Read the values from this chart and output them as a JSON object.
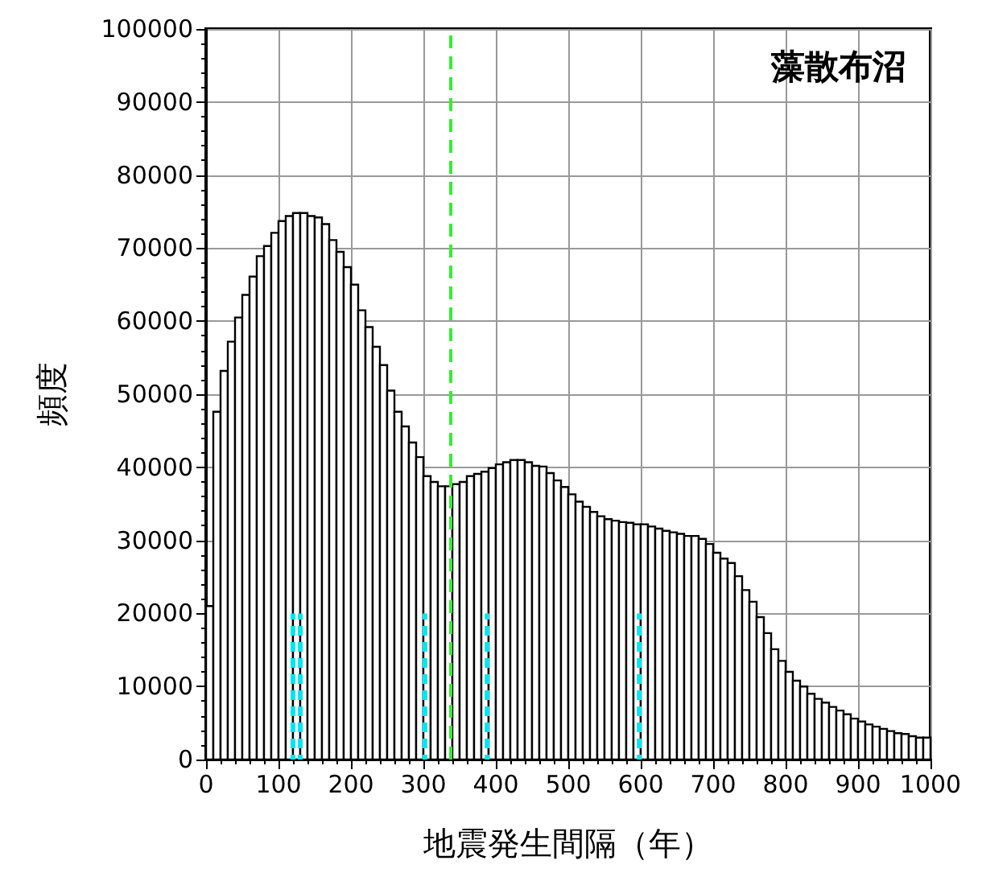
{
  "chart_data": {
    "type": "histogram",
    "title": "藻散布沼",
    "xlabel": "地震発生間隔（年）",
    "ylabel": "頻度",
    "bins": [
      0,
      10,
      20,
      30,
      40,
      50,
      60,
      70,
      80,
      90,
      100,
      110,
      120,
      130,
      140,
      150,
      160,
      170,
      180,
      190,
      200,
      210,
      220,
      230,
      240,
      250,
      260,
      270,
      280,
      290,
      300,
      310,
      320,
      330,
      340,
      350,
      360,
      370,
      380,
      390,
      400,
      410,
      420,
      430,
      440,
      450,
      460,
      470,
      480,
      490,
      500,
      510,
      520,
      530,
      540,
      550,
      560,
      570,
      580,
      590,
      600,
      610,
      620,
      630,
      640,
      650,
      660,
      670,
      680,
      690,
      700,
      710,
      720,
      730,
      740,
      750,
      760,
      770,
      780,
      790,
      800,
      810,
      820,
      830,
      840,
      850,
      860,
      870,
      880,
      890,
      900,
      910,
      920,
      930,
      940,
      950,
      960,
      970,
      980,
      990,
      1000
    ],
    "values": [
      21000,
      47600,
      53200,
      57200,
      60500,
      63600,
      66100,
      68900,
      70300,
      72100,
      73700,
      74400,
      74800,
      74800,
      74400,
      74200,
      73300,
      71100,
      69500,
      67400,
      65000,
      61500,
      59200,
      56500,
      54000,
      50500,
      47600,
      45600,
      43400,
      41400,
      38800,
      38000,
      37400,
      37400,
      37700,
      38000,
      38800,
      39100,
      39400,
      39900,
      40400,
      40700,
      41000,
      41000,
      40700,
      40200,
      40100,
      39200,
      38200,
      37300,
      36300,
      35300,
      34600,
      33900,
      33300,
      32900,
      32700,
      32500,
      32400,
      32200,
      32200,
      31900,
      31600,
      31300,
      31100,
      30900,
      30600,
      30600,
      30200,
      29500,
      28300,
      27500,
      26900,
      25100,
      23200,
      21600,
      19500,
      17300,
      15100,
      13500,
      12000,
      10800,
      10000,
      9000,
      8300,
      7800,
      7200,
      6700,
      6200,
      5600,
      5200,
      4800,
      4500,
      4200,
      3900,
      3600,
      3500,
      3200,
      3000,
      3000
    ],
    "color": "#ffffff",
    "series": [
      {
        "type": "line",
        "color": "#00e5ee",
        "line_style": "dashed",
        "x": [
          120,
          120
        ],
        "values": [
          0,
          20000
        ]
      },
      {
        "type": "line",
        "color": "#00e5ee",
        "line_style": "dashed",
        "x": [
          130,
          130
        ],
        "values": [
          0,
          20000
        ]
      },
      {
        "type": "line",
        "color": "#00e5ee",
        "line_style": "dashed",
        "x": [
          302,
          302
        ],
        "values": [
          0,
          20000
        ]
      },
      {
        "type": "line",
        "color": "#00e5ee",
        "line_style": "dashed",
        "x": [
          388,
          388
        ],
        "values": [
          0,
          20000
        ]
      },
      {
        "type": "line",
        "color": "#00e5ee",
        "line_style": "dashed",
        "x": [
          598,
          598
        ],
        "values": [
          0,
          20000
        ]
      }
    ],
    "ref_lines": [
      {
        "axis": "x",
        "value": 338,
        "color": "#33ee33",
        "line_style": "dashed"
      }
    ],
    "xlim": [
      0,
      1000
    ],
    "xticks": [
      0,
      100,
      200,
      300,
      400,
      500,
      600,
      700,
      800,
      900,
      1000
    ],
    "ylim": [
      0,
      100000
    ],
    "yticks": [
      0,
      10000,
      20000,
      30000,
      40000,
      50000,
      60000,
      70000,
      80000,
      90000,
      100000
    ],
    "grid": true
  }
}
